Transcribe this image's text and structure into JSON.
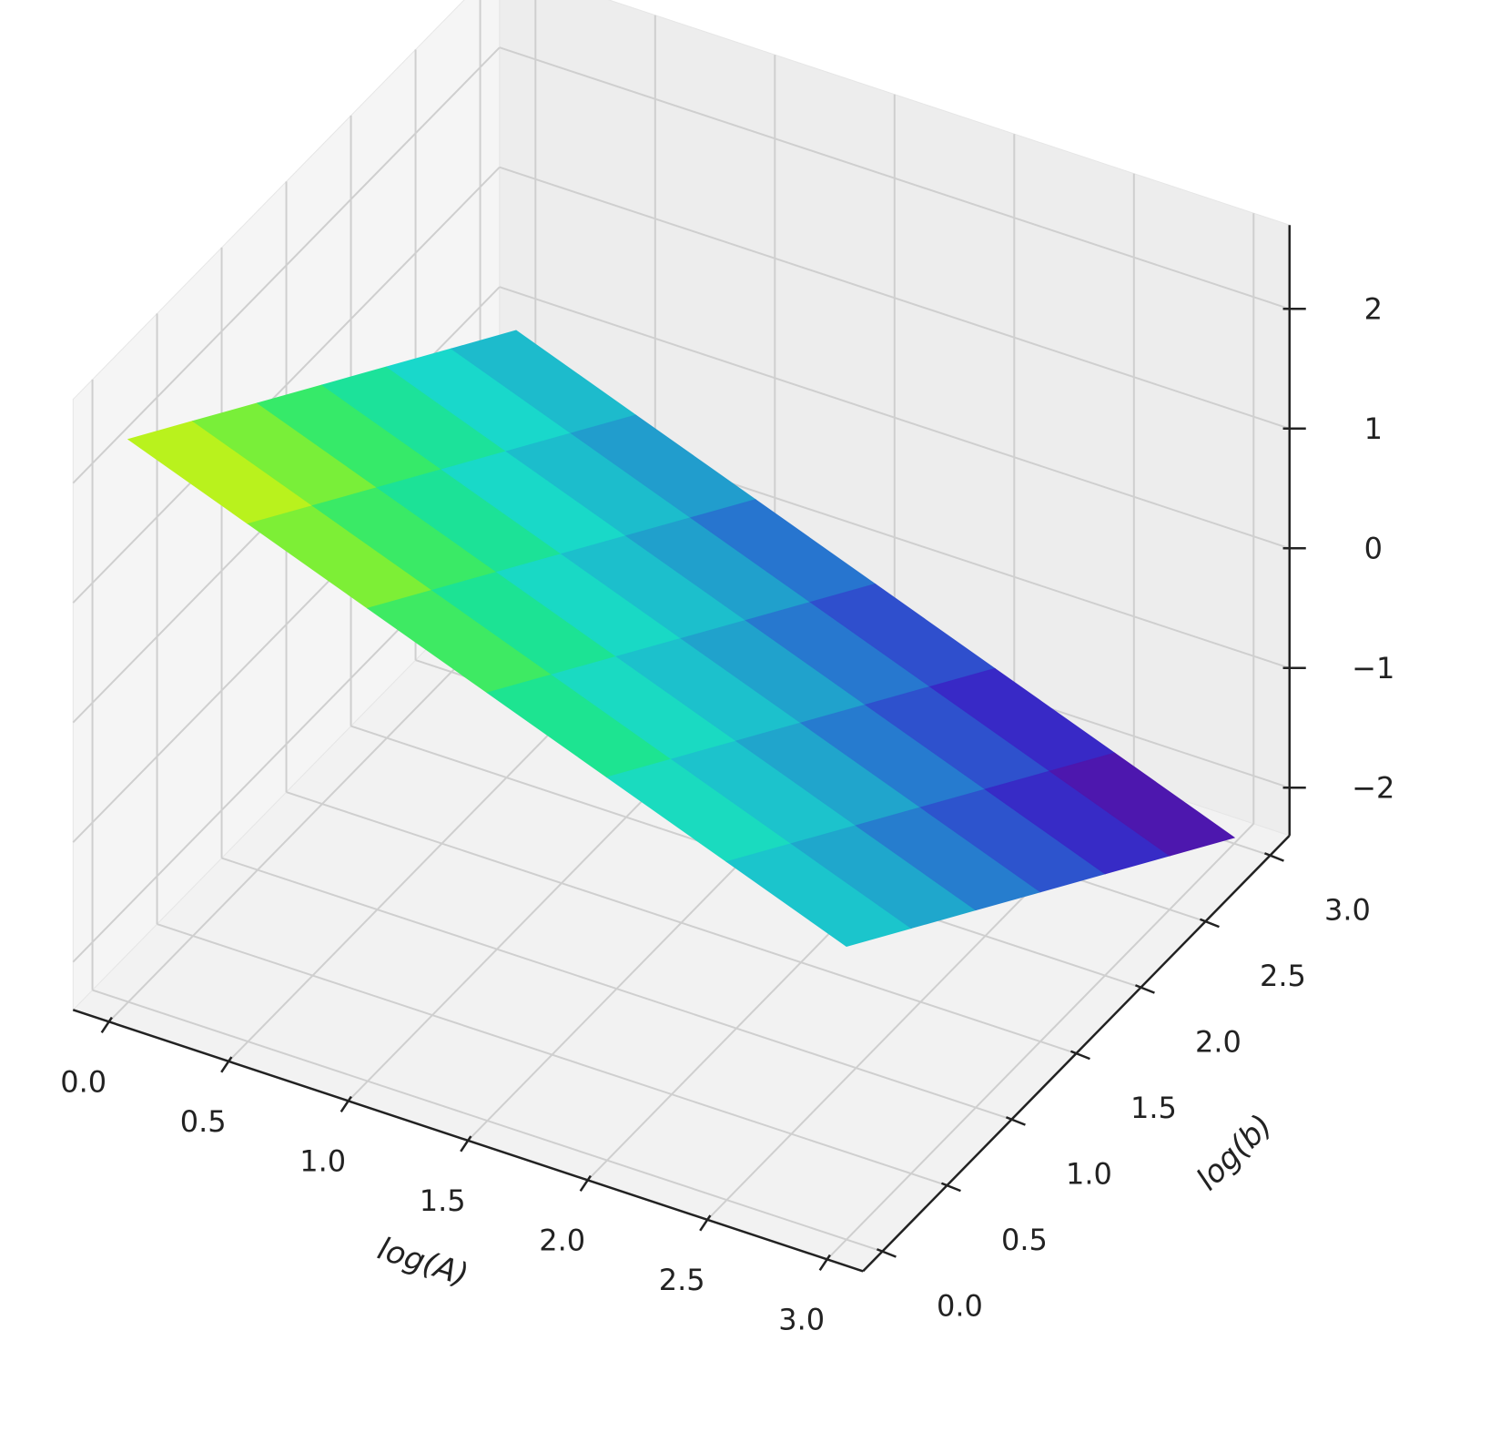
{
  "chart_data": {
    "type": "surface",
    "x_label": "log(A)",
    "y_label": "log(b)",
    "x": [
      0,
      0.5,
      1,
      1.5,
      2,
      2.5,
      3
    ],
    "y": [
      0,
      0.5,
      1,
      1.5,
      2,
      2.5,
      3
    ],
    "z": [
      [
        2.3,
        1.925,
        1.55,
        1.175,
        0.8,
        0.425,
        0.05
      ],
      [
        1.9,
        1.525,
        1.15,
        0.775,
        0.4,
        0.025,
        -0.35
      ],
      [
        1.5,
        1.125,
        0.75,
        0.375,
        0,
        -0.375,
        -0.75
      ],
      [
        1.1,
        0.725,
        0.35,
        -0.025,
        -0.4,
        -0.775,
        -1.15
      ],
      [
        0.7,
        0.325,
        -0.05,
        -0.425,
        -0.8,
        -1.175,
        -1.55
      ],
      [
        0.3,
        -0.075,
        -0.45,
        -0.825,
        -1.2,
        -1.575,
        -1.95
      ],
      [
        -0.1,
        -0.475,
        -0.85,
        -1.225,
        -1.6,
        -1.975,
        -2.35
      ]
    ],
    "xlim": [
      -0.15,
      3.15
    ],
    "ylim": [
      -0.15,
      3.15
    ],
    "zlim": [
      -2.4,
      2.7
    ],
    "xticks": [
      {
        "value": 0,
        "label": "0.0"
      },
      {
        "value": 0.5,
        "label": "0.5"
      },
      {
        "value": 1,
        "label": "1.0"
      },
      {
        "value": 1.5,
        "label": "1.5"
      },
      {
        "value": 2,
        "label": "2.0"
      },
      {
        "value": 2.5,
        "label": "2.5"
      },
      {
        "value": 3,
        "label": "3.0"
      }
    ],
    "yticks": [
      {
        "value": 0,
        "label": "0.0"
      },
      {
        "value": 0.5,
        "label": "0.5"
      },
      {
        "value": 1,
        "label": "1.0"
      },
      {
        "value": 1.5,
        "label": "1.5"
      },
      {
        "value": 2,
        "label": "2.0"
      },
      {
        "value": 2.5,
        "label": "2.5"
      },
      {
        "value": 3,
        "label": "3.0"
      }
    ],
    "zticks": [
      {
        "value": -2,
        "label": "−2"
      },
      {
        "value": -1,
        "label": "−1"
      },
      0,
      1,
      2
    ],
    "colormap": [
      "#680c8e",
      "#3a1fc4",
      "#2a62d0",
      "#1fa8cc",
      "#19d8cc",
      "#1ee87a",
      "#8ef02a",
      "#f6f50a"
    ],
    "grid": true
  }
}
